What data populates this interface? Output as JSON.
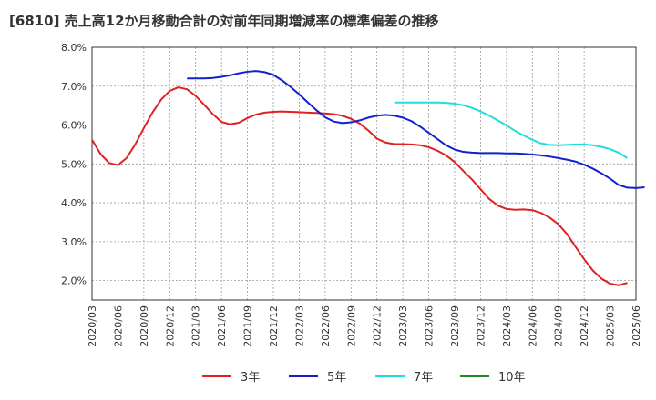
{
  "chart_data": {
    "type": "line",
    "title": "[6810]  売上高12か月移動合計の対前年同期増減率の標準偏差の推移",
    "xlabel": "",
    "ylabel": "",
    "ylim": [
      1.5,
      8.0
    ],
    "y_ticks": [
      "2.0%",
      "3.0%",
      "4.0%",
      "5.0%",
      "6.0%",
      "7.0%",
      "8.0%"
    ],
    "y_tick_values": [
      2.0,
      3.0,
      4.0,
      5.0,
      6.0,
      7.0,
      8.0
    ],
    "x_ticks": [
      "2020/03",
      "2020/06",
      "2020/09",
      "2020/12",
      "2021/03",
      "2021/06",
      "2021/09",
      "2021/12",
      "2022/03",
      "2022/06",
      "2022/09",
      "2022/12",
      "2023/03",
      "2023/06",
      "2023/09",
      "2023/12",
      "2024/03",
      "2024/06",
      "2024/09",
      "2024/12",
      "2025/03",
      "2025/06"
    ],
    "x_start": "2020/03",
    "x_end": "2025/06",
    "grid": true,
    "legend_position": "bottom",
    "series": [
      {
        "name": "3年",
        "color": "#dd2222",
        "start": "2020/03",
        "values": [
          5.62,
          5.25,
          5.02,
          4.97,
          5.15,
          5.5,
          5.92,
          6.32,
          6.65,
          6.88,
          6.97,
          6.92,
          6.75,
          6.52,
          6.28,
          6.08,
          6.02,
          6.06,
          6.18,
          6.27,
          6.32,
          6.34,
          6.35,
          6.34,
          6.33,
          6.32,
          6.31,
          6.3,
          6.28,
          6.24,
          6.16,
          6.04,
          5.86,
          5.65,
          5.55,
          5.51,
          5.51,
          5.5,
          5.48,
          5.43,
          5.34,
          5.22,
          5.05,
          4.82,
          4.6,
          4.35,
          4.1,
          3.93,
          3.84,
          3.82,
          3.83,
          3.81,
          3.74,
          3.62,
          3.45,
          3.2,
          2.87,
          2.55,
          2.26,
          2.05,
          1.92,
          1.88,
          1.94
        ]
      },
      {
        "name": "5年",
        "color": "#1122cc",
        "start": "2021/02",
        "values": [
          7.2,
          7.2,
          7.2,
          7.21,
          7.24,
          7.28,
          7.33,
          7.37,
          7.39,
          7.36,
          7.29,
          7.15,
          6.98,
          6.79,
          6.58,
          6.38,
          6.2,
          6.09,
          6.05,
          6.07,
          6.12,
          6.19,
          6.24,
          6.26,
          6.24,
          6.19,
          6.1,
          5.96,
          5.8,
          5.64,
          5.48,
          5.37,
          5.31,
          5.29,
          5.28,
          5.28,
          5.28,
          5.27,
          5.27,
          5.26,
          5.24,
          5.22,
          5.19,
          5.15,
          5.11,
          5.06,
          4.98,
          4.88,
          4.76,
          4.62,
          4.46,
          4.39,
          4.38,
          4.4
        ]
      },
      {
        "name": "7年",
        "color": "#22dddd",
        "start": "2023/02",
        "values": [
          6.58,
          6.58,
          6.58,
          6.58,
          6.58,
          6.58,
          6.57,
          6.55,
          6.51,
          6.44,
          6.35,
          6.24,
          6.12,
          5.99,
          5.85,
          5.73,
          5.62,
          5.53,
          5.49,
          5.48,
          5.49,
          5.5,
          5.5,
          5.48,
          5.44,
          5.38,
          5.29,
          5.15
        ]
      },
      {
        "name": "10年",
        "color": "#228822",
        "start": "2025/03",
        "values": []
      }
    ]
  }
}
